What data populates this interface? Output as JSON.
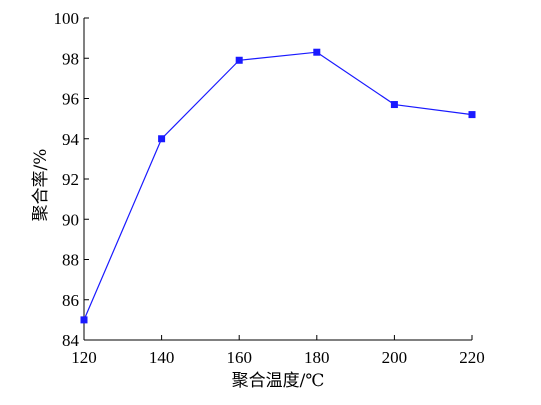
{
  "chart_data": {
    "type": "line",
    "title": "",
    "xlabel": "聚合温度/℃",
    "ylabel": "聚合率/%",
    "x": [
      120,
      140,
      160,
      180,
      200,
      220
    ],
    "series": [
      {
        "values": [
          85.0,
          94.0,
          97.9,
          98.3,
          95.7,
          95.2
        ],
        "color": "#1a1aff",
        "marker": "square"
      }
    ],
    "xlim": [
      120,
      220
    ],
    "ylim": [
      84,
      100
    ],
    "xticks": [
      120,
      140,
      160,
      180,
      200,
      220
    ],
    "yticks": [
      84,
      86,
      88,
      90,
      92,
      94,
      96,
      98,
      100
    ],
    "grid": false,
    "legend": "none"
  }
}
